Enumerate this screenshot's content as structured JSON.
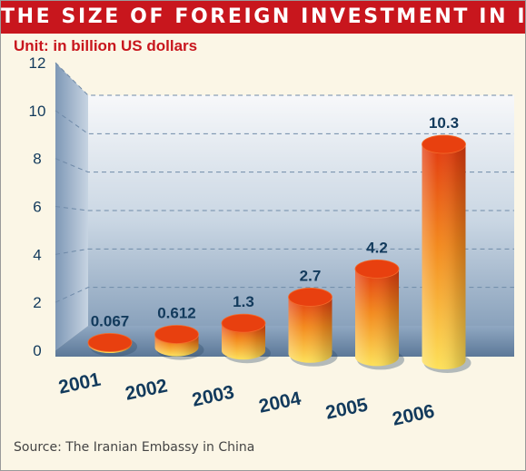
{
  "title": "THE SIZE OF FOREIGN INVESTMENT IN IRAN",
  "unit": "Unit: in billion US dollars",
  "source": "Source: The Iranian Embassy in China",
  "chart_data": {
    "type": "bar",
    "categories": [
      "2001",
      "2002",
      "2003",
      "2004",
      "2005",
      "2006"
    ],
    "values": [
      0.067,
      0.612,
      1.3,
      2.7,
      4.2,
      10.3
    ],
    "value_labels": [
      "0.067",
      "0.612",
      "1.3",
      "2.7",
      "4.2",
      "10.3"
    ],
    "y_ticks": [
      "0",
      "2",
      "4",
      "6",
      "8",
      "10",
      "12"
    ],
    "ylim": [
      0,
      12
    ],
    "grid": true,
    "xlabel": "",
    "ylabel": ""
  },
  "colors": {
    "title_bg": "#c8161d",
    "accent_text": "#c8161d",
    "label_text": "#123a5c",
    "bar_light": "#fbd44a",
    "bar_dark": "#e23a10",
    "bar_top": "#e8400f"
  }
}
